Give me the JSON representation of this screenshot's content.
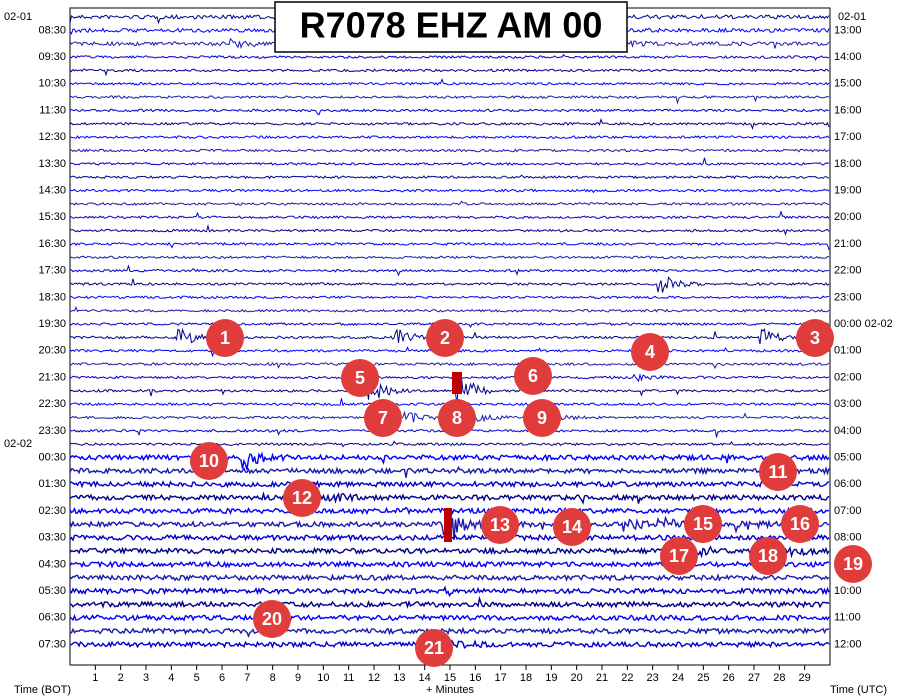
{
  "title": "R7078 EHZ AM 00",
  "left": {
    "date_top": "02-01",
    "date_mid": "02-02",
    "hours": [
      "08:30",
      "09:30",
      "10:30",
      "11:30",
      "12:30",
      "13:30",
      "14:30",
      "15:30",
      "16:30",
      "17:30",
      "18:30",
      "19:30",
      "20:30",
      "21:30",
      "22:30",
      "23:30",
      "00:30",
      "01:30",
      "02:30",
      "03:30",
      "04:30",
      "05:30",
      "06:30",
      "07:30"
    ]
  },
  "right": {
    "date_top": "02-01",
    "hours": [
      "13:00",
      "14:00",
      "15:00",
      "16:00",
      "17:00",
      "18:00",
      "19:00",
      "20:00",
      "21:00",
      "22:00",
      "23:00",
      "00:00 02-02",
      "01:00",
      "02:00",
      "03:00",
      "04:00",
      "05:00",
      "06:00",
      "07:00",
      "08:00",
      "09:00",
      "10:00",
      "11:00",
      "12:00"
    ]
  },
  "x_ticks": [
    1,
    2,
    3,
    4,
    5,
    6,
    7,
    8,
    9,
    10,
    11,
    12,
    13,
    14,
    15,
    16,
    17,
    18,
    19,
    20,
    21,
    22,
    23,
    24,
    25,
    26,
    27,
    28,
    29
  ],
  "x_axis": {
    "left": "Time (BOT)",
    "center": "+ Minutes",
    "right": "Time (UTC)"
  },
  "markers": [
    "1",
    "2",
    "3",
    "4",
    "5",
    "6",
    "7",
    "8",
    "9",
    "10",
    "11",
    "12",
    "13",
    "14",
    "15",
    "16",
    "17",
    "18",
    "19",
    "20",
    "21"
  ]
}
